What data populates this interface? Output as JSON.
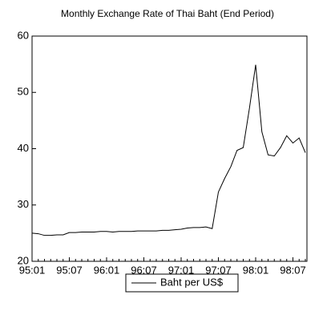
{
  "chart_data": {
    "type": "line",
    "title": "Monthly Exchange Rate of Thai Baht (End Period)",
    "categories": [
      "95:01",
      null,
      null,
      null,
      null,
      null,
      "95:07",
      null,
      null,
      null,
      null,
      null,
      "96:01",
      null,
      null,
      null,
      null,
      null,
      "96:07",
      null,
      null,
      null,
      null,
      null,
      "97:01",
      null,
      null,
      null,
      null,
      null,
      "97:07",
      null,
      null,
      null,
      null,
      null,
      "98:01",
      null,
      null,
      null,
      null,
      null,
      "98:07",
      null,
      null
    ],
    "series": [
      {
        "name": "Baht per US$",
        "color": "#000000",
        "values": [
          25.0,
          24.9,
          24.6,
          24.6,
          24.7,
          24.7,
          25.1,
          25.1,
          25.2,
          25.2,
          25.2,
          25.3,
          25.3,
          25.2,
          25.3,
          25.3,
          25.3,
          25.4,
          25.4,
          25.4,
          25.4,
          25.5,
          25.5,
          25.6,
          25.7,
          25.9,
          26.0,
          26.0,
          26.1,
          25.8,
          32.3,
          34.7,
          36.8,
          39.7,
          40.2,
          47.2,
          54.9,
          43.0,
          38.9,
          38.7,
          40.2,
          42.3,
          41.0,
          41.9,
          39.3
        ]
      }
    ],
    "ylim": [
      20,
      60
    ],
    "yticks": [
      20,
      30,
      40,
      50,
      60
    ],
    "legend": "bottom"
  }
}
